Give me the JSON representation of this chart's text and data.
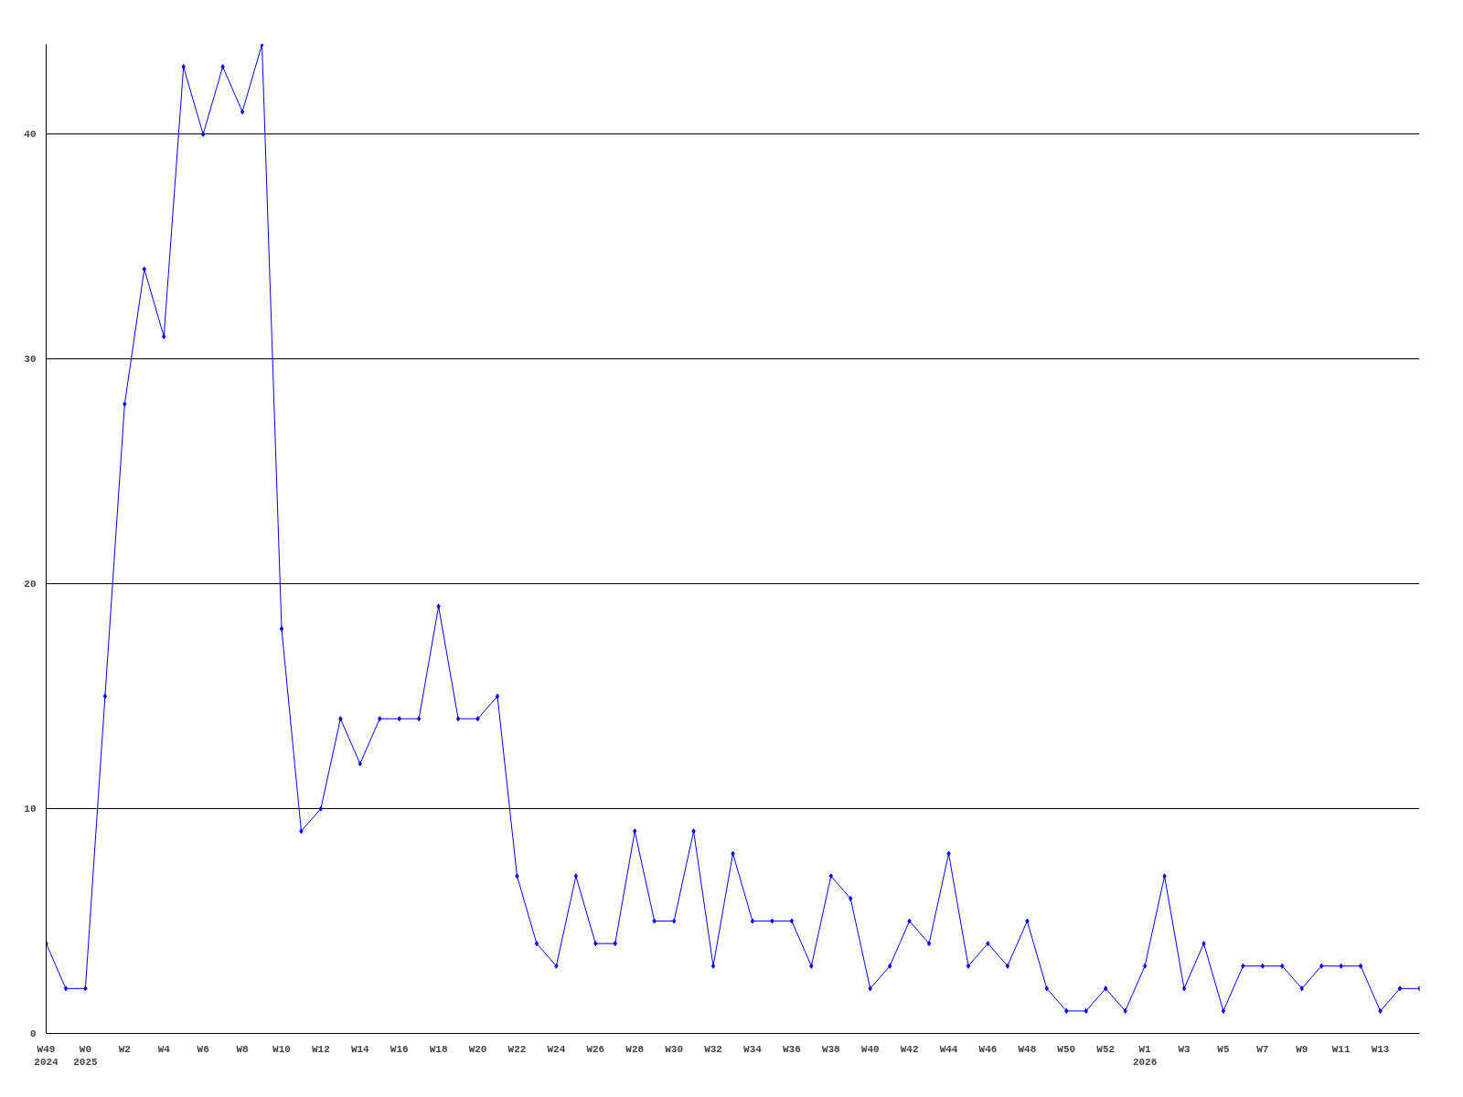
{
  "chart_data": {
    "type": "line",
    "categories": [
      "W49\n2024",
      null,
      "W0\n2025",
      null,
      "W2",
      null,
      "W4",
      null,
      "W6",
      null,
      "W8",
      null,
      "W10",
      null,
      "W12",
      null,
      "W14",
      null,
      "W16",
      null,
      "W18",
      null,
      "W20",
      null,
      "W22",
      null,
      "W24",
      null,
      "W26",
      null,
      "W28",
      null,
      "W30",
      null,
      "W32",
      null,
      "W34",
      null,
      "W36",
      null,
      "W38",
      null,
      "W40",
      null,
      "W42",
      null,
      "W44",
      null,
      "W46",
      null,
      "W48",
      null,
      "W50",
      null,
      "W52",
      null,
      "W1\n2026",
      null,
      "W3",
      null,
      "W5",
      null,
      "W7",
      null,
      "W9",
      null,
      "W11",
      null,
      "W13",
      null,
      null
    ],
    "series": [
      {
        "color": "#0000ff",
        "values": [
          4,
          2,
          2,
          15,
          28,
          34,
          31,
          43,
          40,
          43,
          41,
          44,
          18,
          9,
          10,
          14,
          12,
          14,
          14,
          14,
          19,
          14,
          14,
          15,
          7,
          4,
          3,
          7,
          4,
          4,
          9,
          5,
          5,
          9,
          3,
          8,
          5,
          5,
          5,
          3,
          7,
          6,
          2,
          3,
          5,
          4,
          8,
          3,
          4,
          3,
          5,
          2,
          1,
          1,
          2,
          1,
          3,
          7,
          2,
          4,
          1,
          3,
          3,
          3,
          2,
          3,
          3,
          3,
          1,
          2,
          2
        ]
      }
    ],
    "ylim": [
      0,
      44
    ],
    "yticks": [
      0,
      10,
      20,
      30,
      40
    ],
    "grid": "y",
    "marker": "diamond",
    "line_style": "solid"
  }
}
